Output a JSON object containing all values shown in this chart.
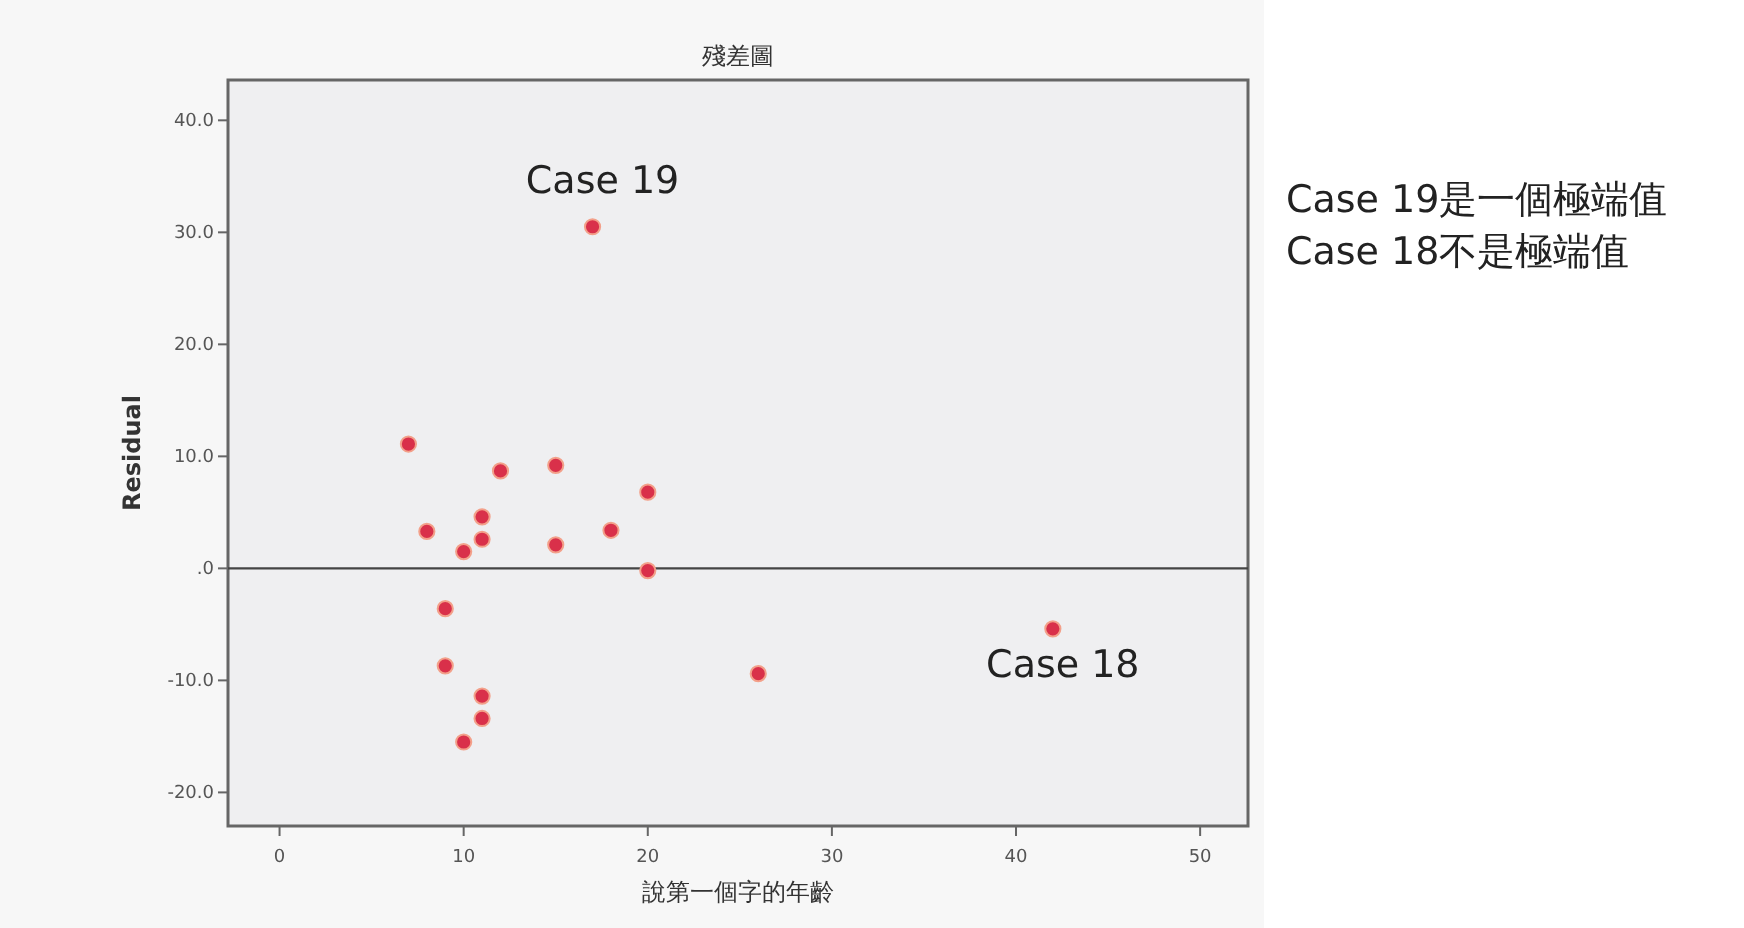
{
  "chart_data": {
    "type": "scatter",
    "title": "殘差圖",
    "xlabel": "說第一個字的年齡",
    "ylabel": "Residual",
    "x": [
      7,
      8,
      10,
      11,
      11,
      12,
      15,
      15,
      18,
      20,
      20,
      9,
      9,
      11,
      11,
      10,
      17,
      26,
      42
    ],
    "series": [
      {
        "color": "#d9304a",
        "values": [
          11.1,
          3.3,
          1.5,
          4.6,
          2.6,
          8.7,
          9.2,
          2.1,
          3.4,
          6.8,
          -0.2,
          -3.6,
          -8.7,
          -11.4,
          -13.4,
          -15.5,
          30.5,
          -9.4,
          -5.4
        ]
      }
    ],
    "xlim": [
      -2.8,
      52.6
    ],
    "ylim": [
      -23,
      43.6
    ],
    "xticks": [
      0,
      10,
      20,
      30,
      40,
      50
    ],
    "yticks": [
      {
        "value": -20,
        "label": "-20.0"
      },
      {
        "value": -10,
        "label": "-10.0"
      },
      {
        "value": 0,
        "label": ".0"
      },
      {
        "value": 10,
        "label": "10.0"
      },
      {
        "value": 20,
        "label": "20.0"
      },
      {
        "value": 30,
        "label": "30.0"
      },
      {
        "value": 40,
        "label": "40.0"
      }
    ],
    "ref_lines": [
      {
        "axis": "y",
        "value": 0,
        "color": "#444444"
      }
    ],
    "marker": "circle",
    "annotations": [
      {
        "text": "Case 19",
        "x": 17,
        "y": 30.5
      },
      {
        "text": "Case 18",
        "x": 42,
        "y": -5.4
      },
      "Case 19是一個極端值",
      "Case 18不是極端值"
    ]
  }
}
